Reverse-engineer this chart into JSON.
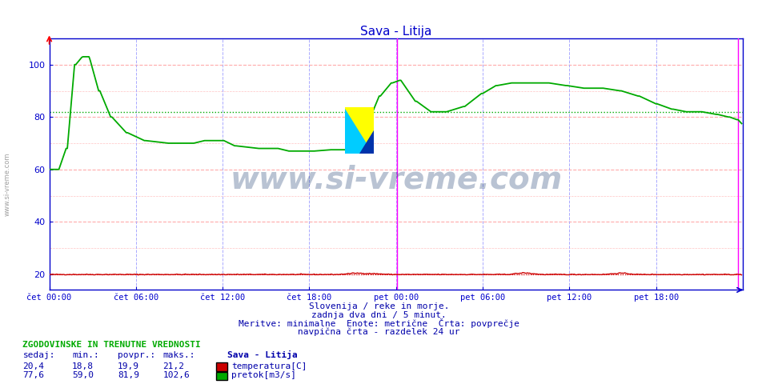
{
  "title": "Sava - Litija",
  "title_color": "#0000cc",
  "bg_color": "#ffffff",
  "plot_bg_color": "#ffffff",
  "fig_bg_color": "#ffffff",
  "xlabel_ticks": [
    "čet 00:00",
    "čet 06:00",
    "čet 12:00",
    "čet 18:00",
    "pet 00:00",
    "pet 06:00",
    "pet 12:00",
    "pet 18:00"
  ],
  "xlim": [
    0,
    576
  ],
  "ylim": [
    14,
    110
  ],
  "yticks": [
    20,
    40,
    60,
    80,
    100
  ],
  "avg_pretok": 81.9,
  "avg_temp": 19.9,
  "vertical_line_x": 289,
  "end_line_x": 572,
  "grid_red_color": "#ffaaaa",
  "grid_blue_color": "#aaaaff",
  "watermark_text": "www.si-vreme.com",
  "watermark_color": "#1a3a6e",
  "watermark_alpha": 0.3,
  "subtitle_lines": [
    "Slovenija / reke in morje.",
    "zadnja dva dni / 5 minut.",
    "Meritve: minimalne  Enote: metrične  Črta: povprečje",
    "navpična črta - razdelek 24 ur"
  ],
  "subtitle_color": "#0000aa",
  "table_header": "ZGODOVINSKE IN TRENUTNE VREDNOSTI",
  "table_cols": [
    "sedaj:",
    "min.:",
    "povpr.:",
    "maks.:",
    "Sava - Litija"
  ],
  "table_row1": [
    "20,4",
    "18,8",
    "19,9",
    "21,2",
    "temperatura[C]"
  ],
  "table_row2": [
    "77,6",
    "59,0",
    "81,9",
    "102,6",
    "pretok[m3/s]"
  ],
  "temp_color": "#cc0000",
  "pretok_color": "#00aa00",
  "axis_color": "#0000cc",
  "tick_color": "#0000cc",
  "left_label": "www.si-vreme.com"
}
